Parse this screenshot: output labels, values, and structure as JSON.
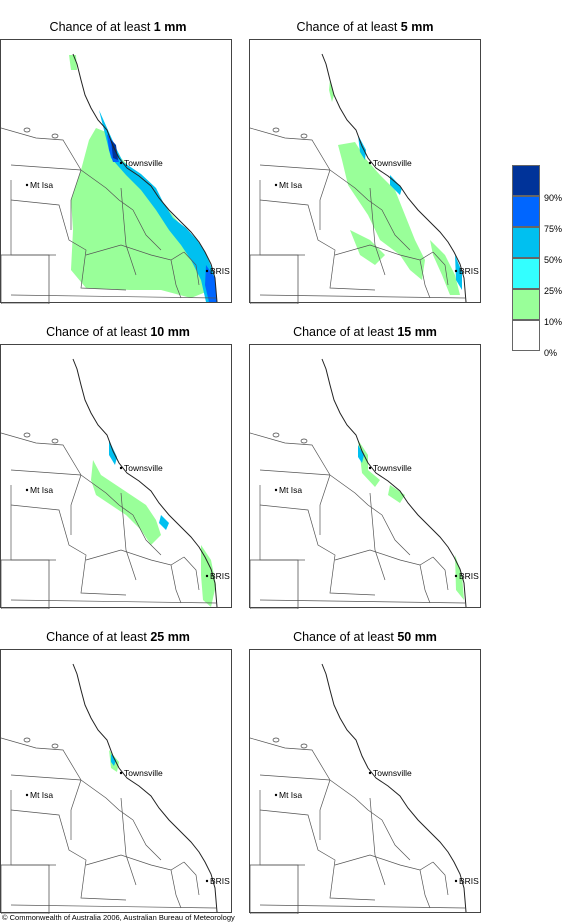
{
  "panels": [
    {
      "title_prefix": "Chance of at least ",
      "amount": "1 mm",
      "level": 0
    },
    {
      "title_prefix": "Chance of at least ",
      "amount": "5 mm",
      "level": 1
    },
    {
      "title_prefix": "Chance of at least ",
      "amount": "10 mm",
      "level": 2
    },
    {
      "title_prefix": "Chance of at least ",
      "amount": "15 mm",
      "level": 3
    },
    {
      "title_prefix": "Chance of at least ",
      "amount": "25 mm",
      "level": 4
    },
    {
      "title_prefix": "Chance of at least ",
      "amount": "50 mm",
      "level": 5
    }
  ],
  "places": {
    "townsville": "Townsville",
    "mt_isa": "Mt Isa",
    "bris": "BRIS"
  },
  "legend": {
    "colors": [
      "#003399",
      "#0066ff",
      "#00c0f0",
      "#33ffff",
      "#99ff99",
      "#ffffff"
    ],
    "labels": [
      "90%",
      "75%",
      "50%",
      "25%",
      "10%",
      "0%"
    ]
  },
  "copyright": "© Commonwealth of Australia 2006, Australian Bureau of Meteorology"
}
